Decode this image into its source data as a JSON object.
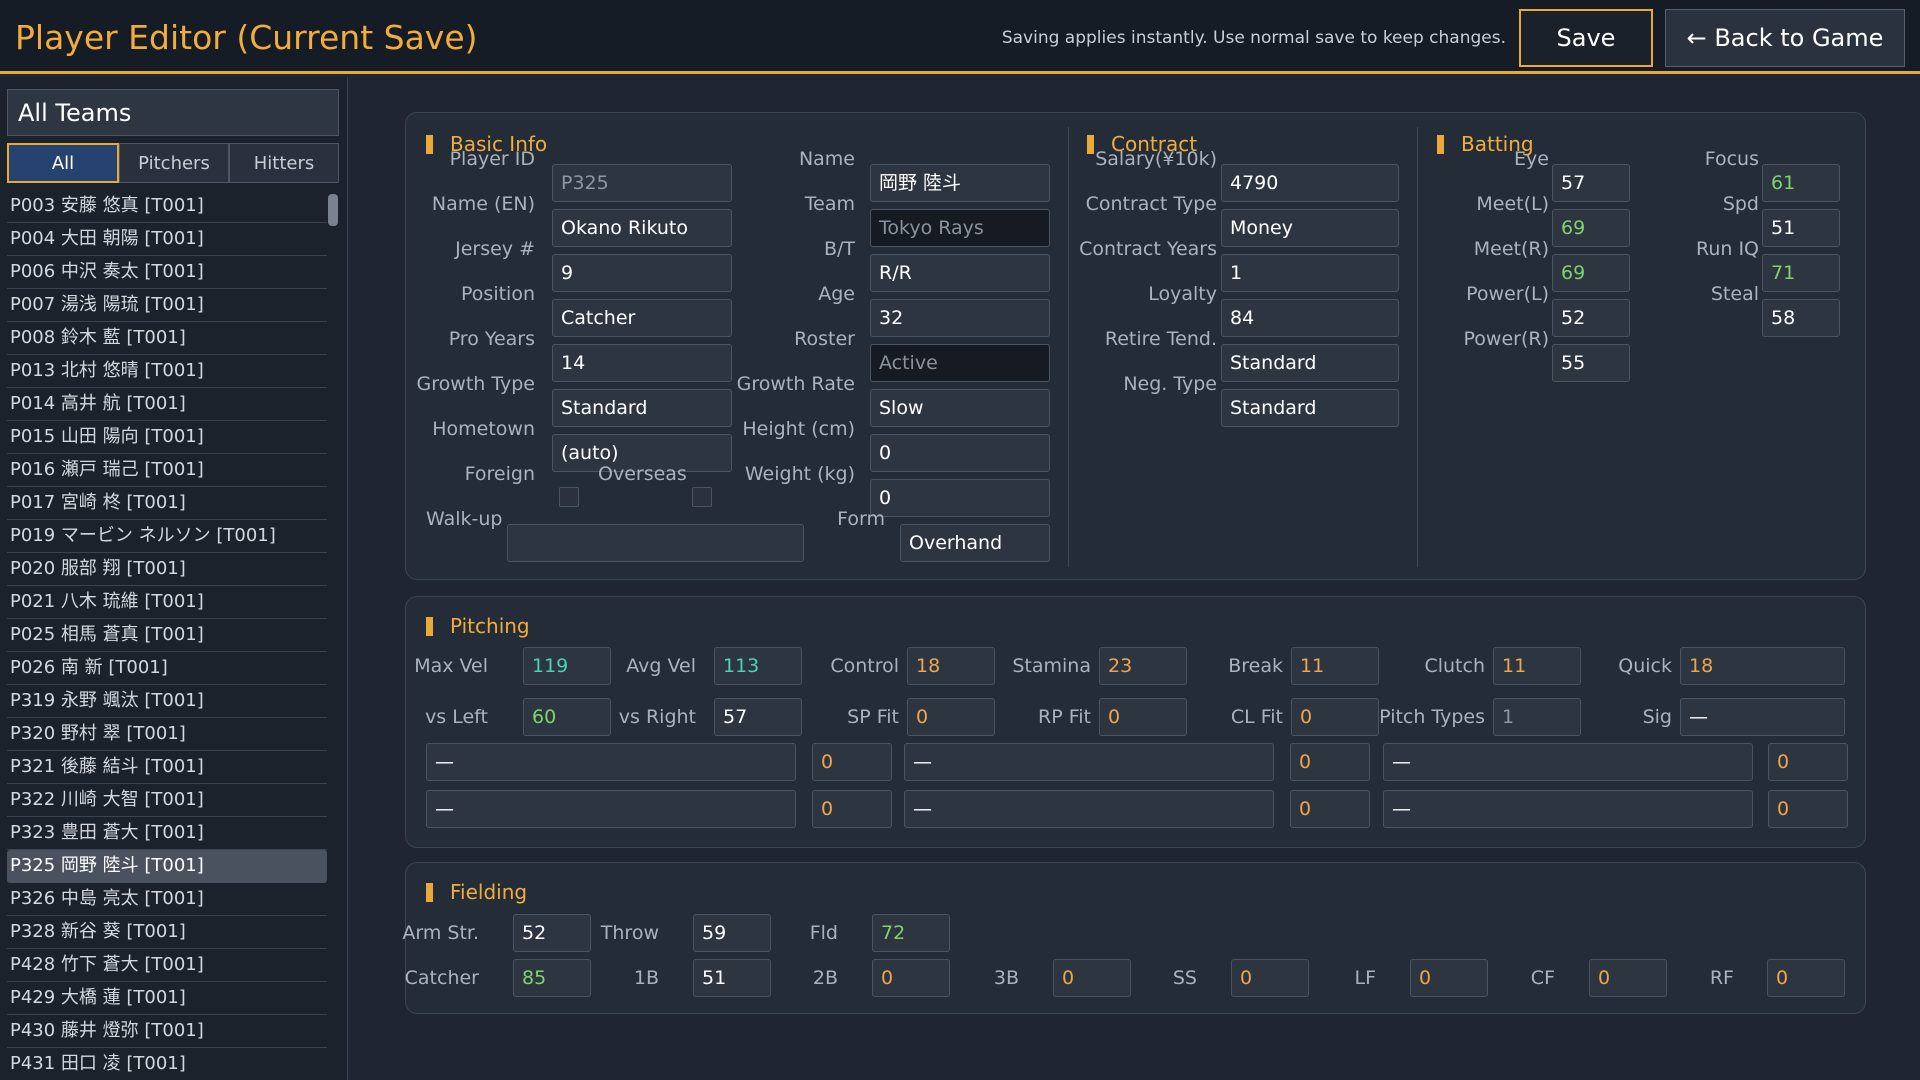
{
  "header": {
    "title": "Player Editor (Current Save)",
    "hint": "Saving applies instantly. Use normal save to keep changes.",
    "save_label": "Save",
    "back_label": "← Back to Game"
  },
  "sidebar": {
    "team": "All Teams",
    "filters": [
      "All",
      "Pitchers",
      "Hitters"
    ],
    "players": [
      "P003 安藤 悠真 [T001]",
      "P004 大田 朝陽 [T001]",
      "P006 中沢 奏太 [T001]",
      "P007 湯浅 陽琉 [T001]",
      "P008 鈴木 藍 [T001]",
      "P013 北村 悠晴 [T001]",
      "P014 高井 航 [T001]",
      "P015 山田 陽向 [T001]",
      "P016 瀬戸 瑞己 [T001]",
      "P017 宮崎 柊 [T001]",
      "P019 マービン ネルソン [T001]",
      "P020 服部 翔 [T001]",
      "P021 八木 琉維 [T001]",
      "P025 相馬 蒼真 [T001]",
      "P026 南 新 [T001]",
      "P319 永野 颯汰 [T001]",
      "P320 野村 翠 [T001]",
      "P321 後藤 結斗 [T001]",
      "P322 川崎 大智 [T001]",
      "P323 豊田 蒼大 [T001]",
      "P325 岡野 陸斗 [T001]",
      "P326 中島 亮太 [T001]",
      "P328 新谷 葵 [T001]",
      "P428 竹下 蒼大 [T001]",
      "P429 大橋 蓮 [T001]",
      "P430 藤井 燈弥 [T001]",
      "P431 田口 凌 [T001]"
    ]
  },
  "basic": {
    "title": "Basic Info",
    "player_id_label": "Player ID",
    "player_id": "P325",
    "name_label": "Name",
    "name": "岡野 陸斗",
    "name_en_label": "Name (EN)",
    "name_en": "Okano Rikuto",
    "team_label": "Team",
    "team": "Tokyo Rays",
    "jersey_label": "Jersey #",
    "jersey": "9",
    "bt_label": "B/T",
    "bt": "R/R",
    "position_label": "Position",
    "position": "Catcher",
    "age_label": "Age",
    "age": "32",
    "pro_years_label": "Pro Years",
    "pro_years": "14",
    "roster_label": "Roster",
    "roster": "Active",
    "growth_type_label": "Growth Type",
    "growth_type": "Standard",
    "growth_rate_label": "Growth Rate",
    "growth_rate": "Slow",
    "hometown_label": "Hometown",
    "hometown": "(auto)",
    "height_label": "Height (cm)",
    "height": "0",
    "foreign_label": "Foreign",
    "overseas_label": "Overseas",
    "weight_label": "Weight (kg)",
    "weight": "0",
    "walkup_label": "Walk-up",
    "walkup": "",
    "form_label": "Form",
    "form": "Overhand"
  },
  "contract": {
    "title": "Contract",
    "salary_label": "Salary(¥10k)",
    "salary": "4790",
    "type_label": "Contract Type",
    "type": "Money",
    "years_label": "Contract Years",
    "years": "1",
    "loyalty_label": "Loyalty",
    "loyalty": "84",
    "retire_label": "Retire Tend.",
    "retire": "Standard",
    "neg_label": "Neg. Type",
    "neg": "Standard"
  },
  "batting": {
    "title": "Batting",
    "eye_label": "Eye",
    "eye": "57",
    "focus_label": "Focus",
    "focus": "61",
    "meet_l_label": "Meet(L)",
    "meet_l": "69",
    "spd_label": "Spd",
    "spd": "51",
    "meet_r_label": "Meet(R)",
    "meet_r": "69",
    "run_iq_label": "Run IQ",
    "run_iq": "71",
    "power_l_label": "Power(L)",
    "power_l": "52",
    "steal_label": "Steal",
    "steal": "58",
    "power_r_label": "Power(R)",
    "power_r": "55"
  },
  "pitching": {
    "title": "Pitching",
    "max_vel_label": "Max Vel",
    "max_vel": "119",
    "avg_vel_label": "Avg Vel",
    "avg_vel": "113",
    "control_label": "Control",
    "control": "18",
    "stamina_label": "Stamina",
    "stamina": "23",
    "break_label": "Break",
    "break": "11",
    "clutch_label": "Clutch",
    "clutch": "11",
    "quick_label": "Quick",
    "quick": "18",
    "vs_left_label": "vs Left",
    "vs_left": "60",
    "vs_right_label": "vs Right",
    "vs_right": "57",
    "sp_fit_label": "SP Fit",
    "sp_fit": "0",
    "rp_fit_label": "RP Fit",
    "rp_fit": "0",
    "cl_fit_label": "CL Fit",
    "cl_fit": "0",
    "pitch_types_label": "Pitch Types",
    "pitch_types": "1",
    "sig_label": "Sig",
    "sig": "—",
    "slots": [
      {
        "name": "—",
        "value": "0"
      },
      {
        "name": "—",
        "value": "0"
      },
      {
        "name": "—",
        "value": "0"
      },
      {
        "name": "—",
        "value": "0"
      },
      {
        "name": "—",
        "value": "0"
      },
      {
        "name": "—",
        "value": "0"
      }
    ]
  },
  "fielding": {
    "title": "Fielding",
    "arm_label": "Arm Str.",
    "arm": "52",
    "throw_label": "Throw",
    "throw": "59",
    "fld_label": "Fld",
    "fld": "72",
    "catcher_label": "Catcher",
    "catcher": "85",
    "p1b_label": "1B",
    "p1b": "51",
    "p2b_label": "2B",
    "p2b": "0",
    "p3b_label": "3B",
    "p3b": "0",
    "ss_label": "SS",
    "ss": "0",
    "lf_label": "LF",
    "lf": "0",
    "cf_label": "CF",
    "cf": "0",
    "rf_label": "RF",
    "rf": "0"
  }
}
